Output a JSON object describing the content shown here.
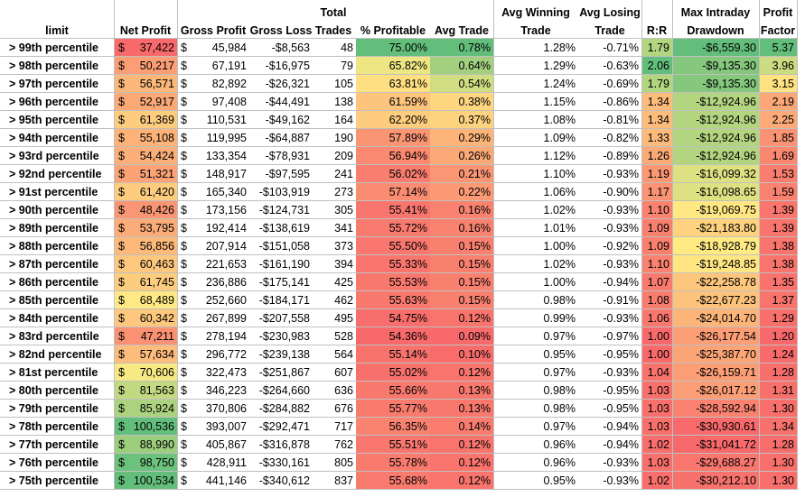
{
  "headers": {
    "limit": "limit",
    "net_profit": "Net Profit",
    "gross_profit": "Gross Profit",
    "gross_loss": "Gross Loss",
    "total_trades_1": "Total",
    "total_trades_2": "Trades",
    "pct_profitable": "% Profitable",
    "avg_trade": "Avg Trade",
    "avg_winning_1": "Avg Winning",
    "avg_winning_2": "Trade",
    "avg_losing_1": "Avg Losing",
    "avg_losing_2": "Trade",
    "rr": "R:R",
    "max_dd_1": "Max Intraday",
    "max_dd_2": "Drawdown",
    "pf_1": "Profit",
    "pf_2": "Factor"
  },
  "currency_symbol": "$",
  "rows": [
    {
      "limit": "> 99th percentile",
      "net": "37,422",
      "gross": "45,984",
      "loss": "-$8,563",
      "trades": "48",
      "pct": "75.00%",
      "avg": "0.78%",
      "win": "1.28%",
      "lose": "-0.71%",
      "rr": "1.79",
      "dd": "-$6,559.30",
      "pf": "5.37"
    },
    {
      "limit": "> 98th percentile",
      "net": "50,217",
      "gross": "67,191",
      "loss": "-$16,975",
      "trades": "79",
      "pct": "65.82%",
      "avg": "0.64%",
      "win": "1.29%",
      "lose": "-0.63%",
      "rr": "2.06",
      "dd": "-$9,135.30",
      "pf": "3.96"
    },
    {
      "limit": "> 97th percentile",
      "net": "56,571",
      "gross": "82,892",
      "loss": "-$26,321",
      "trades": "105",
      "pct": "63.81%",
      "avg": "0.54%",
      "win": "1.24%",
      "lose": "-0.69%",
      "rr": "1.79",
      "dd": "-$9,135.30",
      "pf": "3.15"
    },
    {
      "limit": "> 96th percentile",
      "net": "52,917",
      "gross": "97,408",
      "loss": "-$44,491",
      "trades": "138",
      "pct": "61.59%",
      "avg": "0.38%",
      "win": "1.15%",
      "lose": "-0.86%",
      "rr": "1.34",
      "dd": "-$12,924.96",
      "pf": "2.19"
    },
    {
      "limit": "> 95th percentile",
      "net": "61,369",
      "gross": "110,531",
      "loss": "-$49,162",
      "trades": "164",
      "pct": "62.20%",
      "avg": "0.37%",
      "win": "1.08%",
      "lose": "-0.81%",
      "rr": "1.34",
      "dd": "-$12,924.96",
      "pf": "2.25"
    },
    {
      "limit": "> 94th percentile",
      "net": "55,108",
      "gross": "119,995",
      "loss": "-$64,887",
      "trades": "190",
      "pct": "57.89%",
      "avg": "0.29%",
      "win": "1.09%",
      "lose": "-0.82%",
      "rr": "1.33",
      "dd": "-$12,924.96",
      "pf": "1.85"
    },
    {
      "limit": "> 93rd percentile",
      "net": "54,424",
      "gross": "133,354",
      "loss": "-$78,931",
      "trades": "209",
      "pct": "56.94%",
      "avg": "0.26%",
      "win": "1.12%",
      "lose": "-0.89%",
      "rr": "1.26",
      "dd": "-$12,924.96",
      "pf": "1.69"
    },
    {
      "limit": "> 92nd percentile",
      "net": "51,321",
      "gross": "148,917",
      "loss": "-$97,595",
      "trades": "241",
      "pct": "56.02%",
      "avg": "0.21%",
      "win": "1.10%",
      "lose": "-0.93%",
      "rr": "1.19",
      "dd": "-$16,099.32",
      "pf": "1.53"
    },
    {
      "limit": "> 91st percentile",
      "net": "61,420",
      "gross": "165,340",
      "loss": "-$103,919",
      "trades": "273",
      "pct": "57.14%",
      "avg": "0.22%",
      "win": "1.06%",
      "lose": "-0.90%",
      "rr": "1.17",
      "dd": "-$16,098.65",
      "pf": "1.59"
    },
    {
      "limit": "> 90th percentile",
      "net": "48,426",
      "gross": "173,156",
      "loss": "-$124,731",
      "trades": "305",
      "pct": "55.41%",
      "avg": "0.16%",
      "win": "1.02%",
      "lose": "-0.93%",
      "rr": "1.10",
      "dd": "-$19,069.75",
      "pf": "1.39"
    },
    {
      "limit": "> 89th percentile",
      "net": "53,795",
      "gross": "192,414",
      "loss": "-$138,619",
      "trades": "341",
      "pct": "55.72%",
      "avg": "0.16%",
      "win": "1.01%",
      "lose": "-0.93%",
      "rr": "1.09",
      "dd": "-$21,183.80",
      "pf": "1.39"
    },
    {
      "limit": "> 88th percentile",
      "net": "56,856",
      "gross": "207,914",
      "loss": "-$151,058",
      "trades": "373",
      "pct": "55.50%",
      "avg": "0.15%",
      "win": "1.00%",
      "lose": "-0.92%",
      "rr": "1.09",
      "dd": "-$18,928.79",
      "pf": "1.38"
    },
    {
      "limit": "> 87th percentile",
      "net": "60,463",
      "gross": "221,653",
      "loss": "-$161,190",
      "trades": "394",
      "pct": "55.33%",
      "avg": "0.15%",
      "win": "1.02%",
      "lose": "-0.93%",
      "rr": "1.10",
      "dd": "-$19,248.85",
      "pf": "1.38"
    },
    {
      "limit": "> 86th percentile",
      "net": "61,745",
      "gross": "236,886",
      "loss": "-$175,141",
      "trades": "425",
      "pct": "55.53%",
      "avg": "0.15%",
      "win": "1.00%",
      "lose": "-0.94%",
      "rr": "1.07",
      "dd": "-$22,258.78",
      "pf": "1.35"
    },
    {
      "limit": "> 85th percentile",
      "net": "68,489",
      "gross": "252,660",
      "loss": "-$184,171",
      "trades": "462",
      "pct": "55.63%",
      "avg": "0.15%",
      "win": "0.98%",
      "lose": "-0.91%",
      "rr": "1.08",
      "dd": "-$22,677.23",
      "pf": "1.37"
    },
    {
      "limit": "> 84th percentile",
      "net": "60,342",
      "gross": "267,899",
      "loss": "-$207,558",
      "trades": "495",
      "pct": "54.75%",
      "avg": "0.12%",
      "win": "0.99%",
      "lose": "-0.93%",
      "rr": "1.06",
      "dd": "-$24,014.70",
      "pf": "1.29"
    },
    {
      "limit": "> 83rd percentile",
      "net": "47,211",
      "gross": "278,194",
      "loss": "-$230,983",
      "trades": "528",
      "pct": "54.36%",
      "avg": "0.09%",
      "win": "0.97%",
      "lose": "-0.97%",
      "rr": "1.00",
      "dd": "-$26,177.54",
      "pf": "1.20"
    },
    {
      "limit": "> 82nd percentile",
      "net": "57,634",
      "gross": "296,772",
      "loss": "-$239,138",
      "trades": "564",
      "pct": "55.14%",
      "avg": "0.10%",
      "win": "0.95%",
      "lose": "-0.95%",
      "rr": "1.00",
      "dd": "-$25,387.70",
      "pf": "1.24"
    },
    {
      "limit": "> 81st percentile",
      "net": "70,606",
      "gross": "322,473",
      "loss": "-$251,867",
      "trades": "607",
      "pct": "55.02%",
      "avg": "0.12%",
      "win": "0.97%",
      "lose": "-0.93%",
      "rr": "1.04",
      "dd": "-$26,159.71",
      "pf": "1.28"
    },
    {
      "limit": "> 80th percentile",
      "net": "81,563",
      "gross": "346,223",
      "loss": "-$264,660",
      "trades": "636",
      "pct": "55.66%",
      "avg": "0.13%",
      "win": "0.98%",
      "lose": "-0.95%",
      "rr": "1.03",
      "dd": "-$26,017.12",
      "pf": "1.31"
    },
    {
      "limit": "> 79th percentile",
      "net": "85,924",
      "gross": "370,806",
      "loss": "-$284,882",
      "trades": "676",
      "pct": "55.77%",
      "avg": "0.13%",
      "win": "0.98%",
      "lose": "-0.95%",
      "rr": "1.03",
      "dd": "-$28,592.94",
      "pf": "1.30"
    },
    {
      "limit": "> 78th percentile",
      "net": "100,536",
      "gross": "393,007",
      "loss": "-$292,471",
      "trades": "717",
      "pct": "56.35%",
      "avg": "0.14%",
      "win": "0.97%",
      "lose": "-0.94%",
      "rr": "1.03",
      "dd": "-$30,930.61",
      "pf": "1.34"
    },
    {
      "limit": "> 77th percentile",
      "net": "88,990",
      "gross": "405,867",
      "loss": "-$316,878",
      "trades": "762",
      "pct": "55.51%",
      "avg": "0.12%",
      "win": "0.96%",
      "lose": "-0.94%",
      "rr": "1.02",
      "dd": "-$31,041.72",
      "pf": "1.28"
    },
    {
      "limit": "> 76th percentile",
      "net": "98,750",
      "gross": "428,911",
      "loss": "-$330,161",
      "trades": "805",
      "pct": "55.78%",
      "avg": "0.12%",
      "win": "0.96%",
      "lose": "-0.93%",
      "rr": "1.03",
      "dd": "-$29,688.27",
      "pf": "1.30"
    },
    {
      "limit": "> 75th percentile",
      "net": "100,534",
      "gross": "441,146",
      "loss": "-$340,612",
      "trades": "837",
      "pct": "55.68%",
      "avg": "0.12%",
      "win": "0.95%",
      "lose": "-0.93%",
      "rr": "1.02",
      "dd": "-$30,212.10",
      "pf": "1.30"
    }
  ],
  "colors": {
    "scale_low": "#f8696b",
    "scale_mid": "#ffeb84",
    "scale_high": "#63be7b",
    "grid": "#c0c0c0"
  }
}
